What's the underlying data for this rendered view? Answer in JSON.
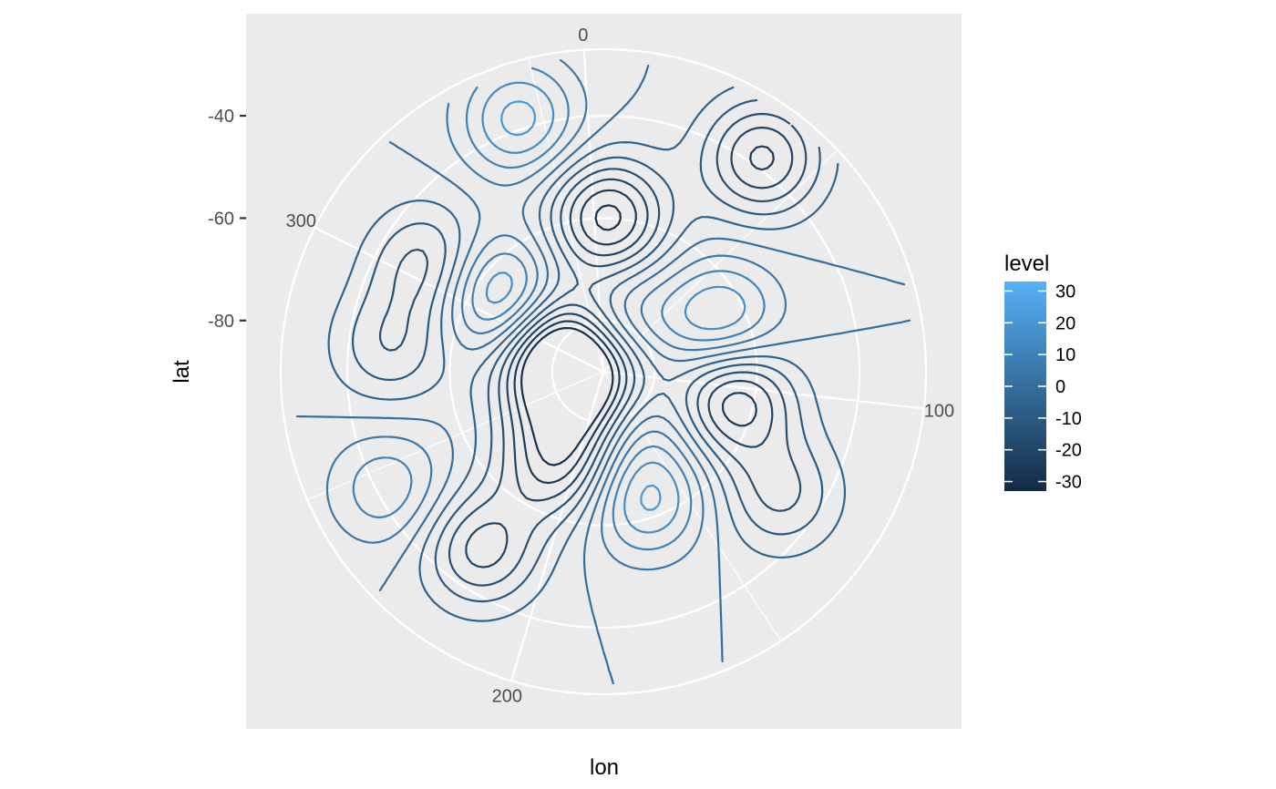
{
  "chart_data": {
    "type": "contour",
    "coordinate_system": "polar",
    "xlabel": "lon",
    "ylabel": "lat",
    "lon_ticks": [
      0,
      100,
      200,
      300
    ],
    "lat_ticks": [
      -40,
      -60,
      -80
    ],
    "lat_range": [
      -90,
      -27
    ],
    "lon_range": [
      0,
      360
    ],
    "grid": true,
    "legend": {
      "title": "level",
      "position": "right",
      "breaks": [
        30,
        20,
        10,
        0,
        -10,
        -20,
        -30
      ],
      "range": [
        -33,
        33
      ],
      "color_low": "#132B43",
      "color_high": "#56B1F7"
    },
    "contour_levels": [
      -30,
      -25,
      -20,
      -15,
      -10,
      -5,
      0,
      5,
      10,
      15,
      20,
      25,
      30
    ],
    "features": [
      {
        "type": "high",
        "lon": 345,
        "lat": -38,
        "peak": 22
      },
      {
        "type": "low",
        "lon": 5,
        "lat": -60,
        "peak": -32
      },
      {
        "type": "low",
        "lon": 40,
        "lat": -38,
        "peak": -26
      },
      {
        "type": "high",
        "lon": 70,
        "lat": -65,
        "peak": 22
      },
      {
        "type": "high",
        "lon": 310,
        "lat": -65,
        "peak": 26
      },
      {
        "type": "low",
        "lon": 305,
        "lat": -50,
        "peak": -18
      },
      {
        "type": "low",
        "lon": 275,
        "lat": -80,
        "peak": -28
      },
      {
        "type": "low",
        "lon": 280,
        "lat": -48,
        "peak": -14
      },
      {
        "type": "low",
        "lon": 105,
        "lat": -64,
        "peak": -30
      },
      {
        "type": "high",
        "lon": 165,
        "lat": -64,
        "peak": 22
      },
      {
        "type": "low",
        "lon": 112,
        "lat": -87,
        "peak": -34
      },
      {
        "type": "high",
        "lon": 148,
        "lat": -82,
        "peak": 30
      },
      {
        "type": "high",
        "lon": 20,
        "lat": -82,
        "peak": 22
      },
      {
        "type": "low",
        "lon": 320,
        "lat": -80,
        "peak": -22
      },
      {
        "type": "low",
        "lon": 190,
        "lat": -83,
        "peak": -18
      },
      {
        "type": "low",
        "lon": 210,
        "lat": -70,
        "peak": -26
      },
      {
        "type": "high",
        "lon": 245,
        "lat": -42,
        "peak": 14
      },
      {
        "type": "low",
        "lon": 218,
        "lat": -48,
        "peak": -22
      },
      {
        "type": "low",
        "lon": 128,
        "lat": -48,
        "peak": -16
      }
    ]
  }
}
